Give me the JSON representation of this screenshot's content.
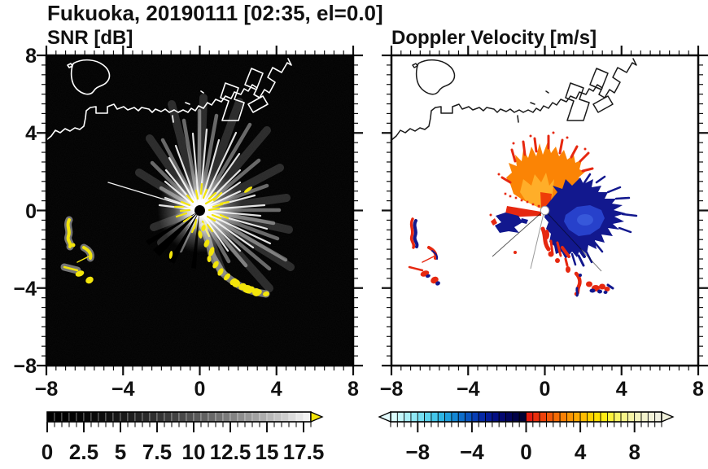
{
  "title": "Fukuoka, 20190111 [02:35, el=0.0]",
  "panels": {
    "snr": {
      "title": "SNR [dB]"
    },
    "doppler": {
      "title": "Doppler Velocity [m/s]"
    }
  },
  "axes": {
    "range": [
      -8,
      8
    ],
    "major_step": 4,
    "minor_step": 0.5,
    "x_major_labels": [
      "−8",
      "−4",
      "0",
      "4",
      "8"
    ],
    "y_major_labels": [
      "8",
      "4",
      "0",
      "−4",
      "−8"
    ]
  },
  "colorbars": {
    "snr": {
      "min": 0,
      "max": 18,
      "segment_step": 0.5,
      "major_tick_step": 2.5,
      "tick_labels": [
        "0",
        "2.5",
        "5",
        "7.5",
        "10",
        "12.5",
        "15",
        "17.5"
      ],
      "over_arrow_color": "#f3e50b",
      "colors": [
        "#000000",
        "#000000",
        "#010101",
        "#030303",
        "#050505",
        "#070707",
        "#0a0a0a",
        "#0d0d0d",
        "#111111",
        "#151515",
        "#191919",
        "#1e1e1e",
        "#232323",
        "#292929",
        "#2f2f2f",
        "#353535",
        "#3b3b3b",
        "#424242",
        "#494949",
        "#515151",
        "#595959",
        "#616161",
        "#696969",
        "#727272",
        "#7b7b7b",
        "#848484",
        "#8e8e8e",
        "#989898",
        "#a2a2a2",
        "#adadad",
        "#b8b8b8",
        "#c3c3c3",
        "#cecece",
        "#dadada",
        "#e6e6e6",
        "#f2f2f2"
      ]
    },
    "doppler": {
      "min": -10,
      "max": 10,
      "segment_step": 0.5,
      "tick_values": [
        -8,
        -4,
        0,
        4,
        8
      ],
      "tick_labels": [
        "−8",
        "−4",
        "0",
        "4",
        "8"
      ],
      "under_arrow_color": "#e4fbfd",
      "over_arrow_color": "#f1f1dc",
      "colors": [
        "#dcfdfd",
        "#c4f7fb",
        "#aaf0f8",
        "#90e8f5",
        "#76dff2",
        "#5cd4ee",
        "#44c6ea",
        "#2eb5e4",
        "#1e9fdd",
        "#1487d4",
        "#0e6ecb",
        "#0a55c0",
        "#083eb4",
        "#0629a6",
        "#051b96",
        "#040f84",
        "#030870",
        "#02045c",
        "#010248",
        "#010134",
        "#e41a10",
        "#e92e0d",
        "#ee420a",
        "#f25708",
        "#f66c06",
        "#f98104",
        "#fb9603",
        "#fdaa02",
        "#febd01",
        "#ffd001",
        "#ffe002",
        "#ffec14",
        "#fdf23c",
        "#faf566",
        "#f7f58a",
        "#f5f4a6",
        "#f3f3bc",
        "#f2f2cc",
        "#f1f1d8",
        "#f0f0e0"
      ]
    }
  },
  "palette": {
    "yellow": "#f3e50b",
    "navy": "#12188e",
    "royal": "#2a46d2",
    "royal_light": "#3f62df",
    "red": "#e62810",
    "red_orange": "#ee3c08",
    "orange": "#fb8405",
    "amber": "#ffb22e",
    "snr_background": "#000000",
    "doppler_background": "#ffffff"
  },
  "chart_data": [
    {
      "type": "heatmap",
      "title": "SNR [dB]",
      "xlim": [
        -8,
        8
      ],
      "ylim": [
        -8,
        8
      ],
      "background": "#000000",
      "colorbar": {
        "min": 0,
        "max": 18,
        "step": 0.5,
        "ticks": [
          0,
          2.5,
          5,
          7.5,
          10,
          12.5,
          15,
          17.5
        ],
        "colormap": "black to white grayscale, yellow arrow for values above max"
      },
      "features": [
        "white coastline of Hakata Bay along top with island near (-6,7) and harbor piers near (2..4, 5..8)",
        "radial white starburst of radar returns centered at origin (0,0), brightest toward up and lower-right, black disk at exact center",
        "yellow high-SNR clutter chain from (0.3,-0.8) curving to (3.5,-4.3)",
        "yellow clutter arcs near (-7..-5.5, -0.5..-3.8)",
        "small yellow echo near (2.5, 1.1)"
      ]
    },
    {
      "type": "heatmap",
      "title": "Doppler Velocity [m/s]",
      "xlim": [
        -8,
        8
      ],
      "ylim": [
        -8,
        8
      ],
      "background": "#ffffff",
      "colorbar": {
        "min": -10,
        "max": 10,
        "step": 0.5,
        "ticks": [
          -8,
          -4,
          0,
          4,
          8
        ],
        "colormap": "pale cyan → blue → dark navy for negative, red → orange → cream for positive, arrows on both ends"
      },
      "features": [
        "black coastline identical to SNR panel",
        "orange/amber positive-velocity fan (≈ +3 to +9 m/s) fanning up-left from origin with red tips",
        "dark navy negative-velocity lobe (≈ -3 to -9 m/s) extending right/lower-right of origin with brighter royal-blue core",
        "red fringe (≈ +1 m/s) below origin and along lobe bottom",
        "navy/red clutter arcs near (-7..-5.5, -0.5..-3.8)",
        "red/navy clutter chain near (1.5..3.5, -3..-4.5)",
        "white circle at radar origin"
      ]
    }
  ]
}
